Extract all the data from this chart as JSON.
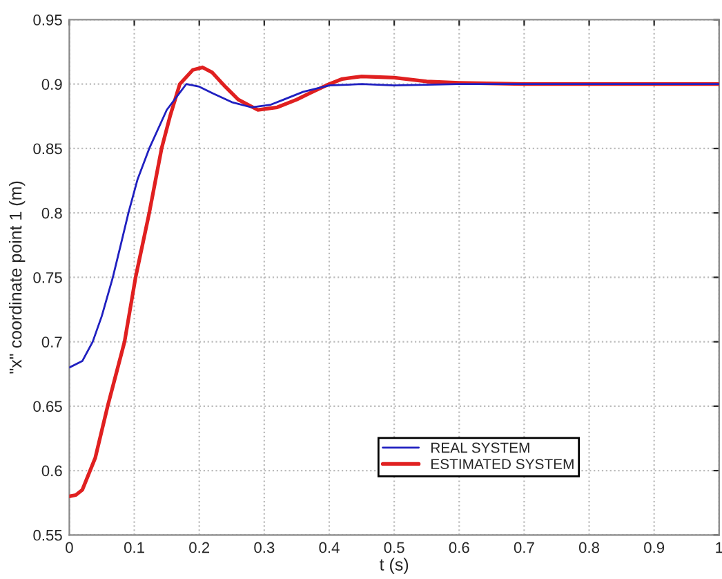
{
  "chart_data": {
    "type": "line",
    "xlabel": "t (s)",
    "ylabel": "\"x\" coordinate point 1 (m)",
    "xlim": [
      0,
      1
    ],
    "xticks": [
      0,
      0.1,
      0.2,
      0.3,
      0.4,
      0.5,
      0.6,
      0.7,
      0.8,
      0.9,
      1
    ],
    "ylim": [
      0.55,
      0.95
    ],
    "yticks": [
      0.55,
      0.6,
      0.65,
      0.7,
      0.75,
      0.8,
      0.85,
      0.9,
      0.95
    ],
    "grid": true,
    "legend": "bottom",
    "marker": "none",
    "line_style": "solid",
    "series": [
      {
        "name": "REAL SYSTEM",
        "color": "#2020c0",
        "x": [
          0,
          0.02,
          0.036,
          0.05,
          0.067,
          0.08,
          0.091,
          0.105,
          0.123,
          0.15,
          0.18,
          0.2,
          0.22,
          0.25,
          0.28,
          0.31,
          0.33,
          0.36,
          0.4,
          0.45,
          0.5,
          0.6,
          0.7,
          0.8,
          0.9,
          1
        ],
        "values": [
          0.68,
          0.685,
          0.7,
          0.72,
          0.75,
          0.777,
          0.8,
          0.826,
          0.85,
          0.88,
          0.9,
          0.898,
          0.893,
          0.886,
          0.882,
          0.884,
          0.888,
          0.894,
          0.899,
          0.9,
          0.899,
          0.9,
          0.9,
          0.9,
          0.9,
          0.9
        ]
      },
      {
        "name": "ESTIMATED SYSTEM",
        "color": "#e02020",
        "x": [
          0,
          0.01,
          0.02,
          0.04,
          0.059,
          0.072,
          0.085,
          0.102,
          0.123,
          0.142,
          0.155,
          0.17,
          0.19,
          0.205,
          0.22,
          0.24,
          0.26,
          0.29,
          0.32,
          0.35,
          0.37,
          0.4,
          0.42,
          0.45,
          0.5,
          0.55,
          0.6,
          0.7,
          0.8,
          0.9,
          1
        ],
        "values": [
          0.58,
          0.581,
          0.585,
          0.61,
          0.65,
          0.675,
          0.7,
          0.75,
          0.8,
          0.85,
          0.875,
          0.9,
          0.911,
          0.913,
          0.909,
          0.898,
          0.888,
          0.88,
          0.882,
          0.888,
          0.893,
          0.9,
          0.904,
          0.906,
          0.905,
          0.902,
          0.901,
          0.9,
          0.9,
          0.9,
          0.9
        ]
      }
    ]
  }
}
